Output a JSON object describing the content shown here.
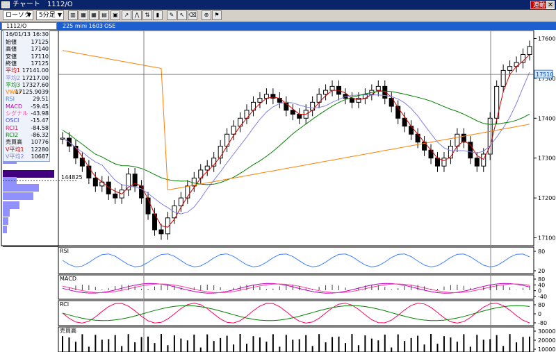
{
  "window": {
    "title": "チャート　1112/O",
    "sync_label": "連動",
    "close_glyph": "✕"
  },
  "toolbar": {
    "chart_type": "ローソク",
    "interval": "5分足"
  },
  "symbol_bar": {
    "symbol": "1112/O",
    "contract": "225 mini 1603",
    "exchange": "OSE"
  },
  "info_panel": {
    "date": "16/01/13",
    "time": "16:30",
    "rows": [
      {
        "label": "始値",
        "value": "17125",
        "color": "#000000"
      },
      {
        "label": "高値",
        "value": "17140",
        "color": "#000000"
      },
      {
        "label": "安値",
        "value": "17110",
        "color": "#000000"
      },
      {
        "label": "終値",
        "value": "17125",
        "color": "#000000"
      },
      {
        "label": "平均1",
        "value": "17141.00",
        "color": "#d00000"
      },
      {
        "label": "平均2",
        "value": "17217.00",
        "color": "#8080e0"
      },
      {
        "label": "平均3",
        "value": "17327.60",
        "color": "#008000"
      },
      {
        "label": "VWAP",
        "value": "17125.9039",
        "color": "#ff8000"
      },
      {
        "label": "RSI",
        "value": "29.51",
        "color": "#4080ff"
      },
      {
        "label": "MACD",
        "value": "-59.45",
        "color": "#c000c0"
      },
      {
        "label": "シグナル",
        "value": "-43.98",
        "color": "#ff40a0"
      },
      {
        "label": "OSCI",
        "value": "-15.47",
        "color": "#4040ff"
      },
      {
        "label": "RCI1",
        "value": "-84.58",
        "color": "#ff0060"
      },
      {
        "label": "RCI2",
        "value": "-86.32",
        "color": "#008000"
      },
      {
        "label": "売買高",
        "value": "10776",
        "color": "#000000"
      },
      {
        "label": "V平均1",
        "value": "12280",
        "color": "#d00000"
      },
      {
        "label": "V平均2",
        "value": "10687",
        "color": "#8080e0"
      }
    ]
  },
  "chart_data": {
    "type": "candlestick",
    "price_axis": {
      "ticks": [
        "17600",
        "17500",
        "17400",
        "17300",
        "17200",
        "17100"
      ],
      "ylim": [
        17080,
        17620
      ]
    },
    "current_price": "17510",
    "volume_profile_label": "144825",
    "sub_panels": [
      {
        "name": "RSI",
        "ticks": [
          "80",
          "20"
        ]
      },
      {
        "name": "MACD",
        "ticks": [
          "80",
          "40",
          "0",
          "-40"
        ]
      },
      {
        "name": "RCI",
        "ticks": [
          "80",
          "0",
          "-80"
        ]
      },
      {
        "name": "売買高",
        "ticks": [
          "30000",
          "20000",
          "10000"
        ]
      }
    ],
    "close_path": [
      17350,
      17330,
      17300,
      17280,
      17250,
      17230,
      17240,
      17210,
      17200,
      17220,
      17260,
      17230,
      17200,
      17160,
      17120,
      17110,
      17150,
      17180,
      17200,
      17230,
      17250,
      17270,
      17280,
      17300,
      17330,
      17360,
      17380,
      17400,
      17420,
      17440,
      17450,
      17460,
      17450,
      17440,
      17420,
      17410,
      17400,
      17420,
      17440,
      17460,
      17470,
      17480,
      17460,
      17450,
      17440,
      17450,
      17460,
      17470,
      17480,
      17450,
      17430,
      17400,
      17380,
      17360,
      17340,
      17320,
      17300,
      17280,
      17300,
      17330,
      17360,
      17340,
      17300,
      17280,
      17310,
      17400,
      17480,
      17520,
      17530,
      17540,
      17560,
      17580
    ],
    "colors": {
      "ma1": "#d00000",
      "ma2": "#8080e0",
      "ma3": "#008000",
      "vwap": "#ff8000",
      "rsi": "#4080ff",
      "macd": "#c000c0",
      "signal": "#ff40a0",
      "rci1": "#ff0060",
      "rci2": "#008000",
      "profile": "#9090ff",
      "profile_hl": "#400080"
    }
  }
}
